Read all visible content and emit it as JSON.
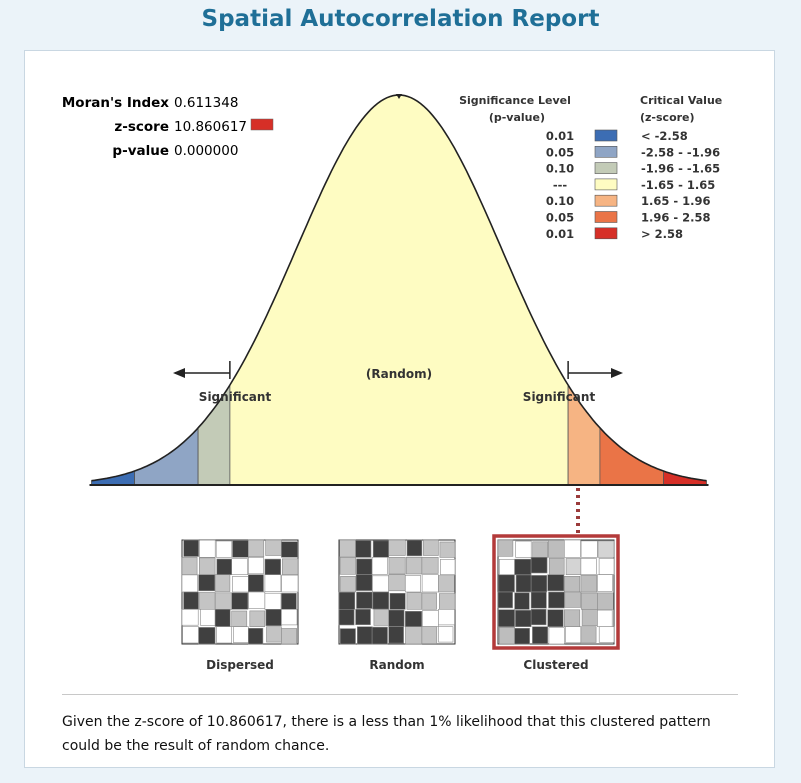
{
  "title": "Spatial Autocorrelation Report",
  "stats": {
    "moran_label": "Moran's Index",
    "moran_value": "0.611348",
    "z_label": "z-score",
    "z_value": "10.860617",
    "p_label": "p-value",
    "p_value": "0.000000"
  },
  "legend": {
    "sig_header_1": "Significance Level",
    "sig_header_2": "(p-value)",
    "crit_header_1": "Critical Value",
    "crit_header_2": "(z-score)",
    "rows": [
      {
        "p": "0.01",
        "z": "< -2.58",
        "color": "#3c6db3"
      },
      {
        "p": "0.05",
        "z": "-2.58 - -1.96",
        "color": "#8fa5c5"
      },
      {
        "p": "0.10",
        "z": "-1.96 - -1.65",
        "color": "#c3cbb7"
      },
      {
        "p": "---",
        "z": "-1.65 - 1.65",
        "color": "#fefcc2"
      },
      {
        "p": "0.10",
        "z": "1.65 - 1.96",
        "color": "#f6b483"
      },
      {
        "p": "0.05",
        "z": "1.96 - 2.58",
        "color": "#ea7447"
      },
      {
        "p": "0.01",
        "z": "> 2.58",
        "color": "#d62f27"
      }
    ]
  },
  "chart_data": {
    "type": "area",
    "distribution": "standard normal",
    "x_range": [
      -3.0,
      3.0
    ],
    "breaks": [
      -2.58,
      -1.96,
      -1.65,
      1.65,
      1.96,
      2.58
    ],
    "center_label": "(Random)",
    "left_label": "Significant",
    "right_label": "Significant",
    "observed_z": 10.860617,
    "highlighted_band": "> 2.58"
  },
  "patterns": [
    {
      "label": "Dispersed",
      "selected": false
    },
    {
      "label": "Random",
      "selected": false
    },
    {
      "label": "Clustered",
      "selected": true
    }
  ],
  "summary": "Given the z-score of 10.860617, there is a less than 1% likelihood that this clustered pattern could be the result of random chance."
}
